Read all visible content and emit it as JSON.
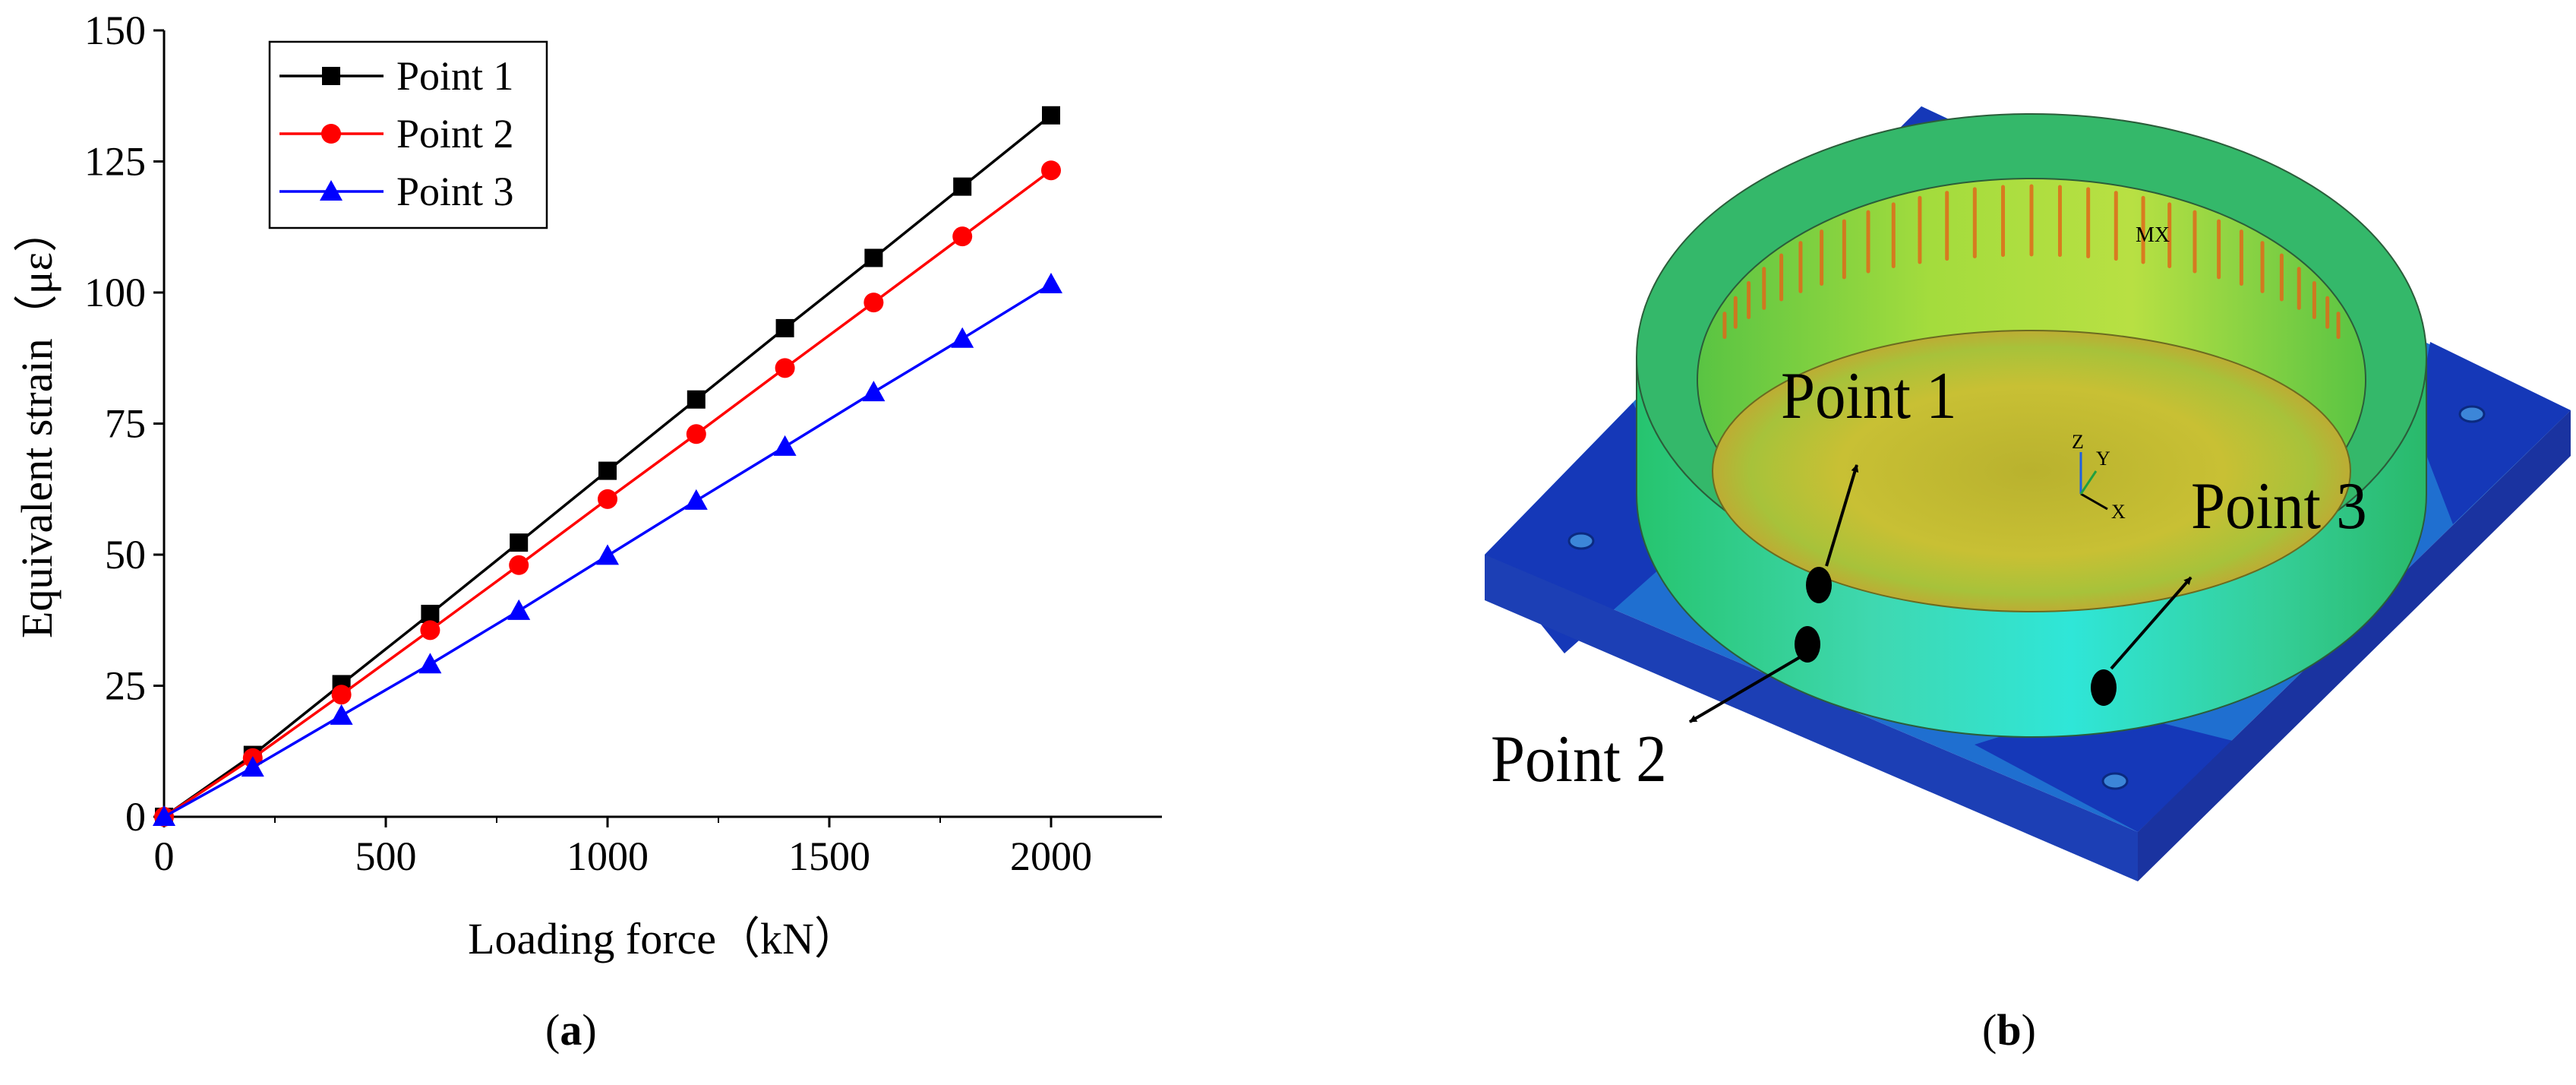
{
  "chart_data": {
    "type": "line",
    "xlabel": "Loading force（kN）",
    "ylabel": "Equivalent strain（με）",
    "xlim": [
      0,
      2250
    ],
    "ylim": [
      0,
      150
    ],
    "xticks": [
      0,
      500,
      1000,
      1500,
      2000
    ],
    "yticks": [
      0,
      25,
      50,
      75,
      100,
      125,
      150
    ],
    "grid": false,
    "legend_position": "top-left",
    "x": [
      0,
      200,
      400,
      600,
      800,
      1000,
      1200,
      1400,
      1600,
      1800,
      2000
    ],
    "series": [
      {
        "name": "Point 1",
        "color": "#000000",
        "marker": "square",
        "values": [
          0,
          11.8,
          25.3,
          38.7,
          52.3,
          66.0,
          79.6,
          93.2,
          106.6,
          120.2,
          133.8
        ]
      },
      {
        "name": "Point 2",
        "color": "#ff0000",
        "marker": "circle",
        "values": [
          0,
          11.2,
          23.3,
          35.6,
          48.0,
          60.6,
          73.0,
          85.6,
          98.1,
          110.7,
          123.3
        ]
      },
      {
        "name": "Point 3",
        "color": "#0000ff",
        "marker": "triangle",
        "values": [
          0,
          9.4,
          19.3,
          29.1,
          39.3,
          49.8,
          60.3,
          70.6,
          81.0,
          91.2,
          101.6
        ]
      }
    ]
  },
  "panel_b": {
    "labels": [
      "Point 1",
      "Point 2",
      "Point 3"
    ],
    "mx_label": "MX",
    "axis_labels": [
      "X",
      "Y",
      "Z"
    ]
  },
  "captions": {
    "a": "a",
    "b": "b"
  }
}
